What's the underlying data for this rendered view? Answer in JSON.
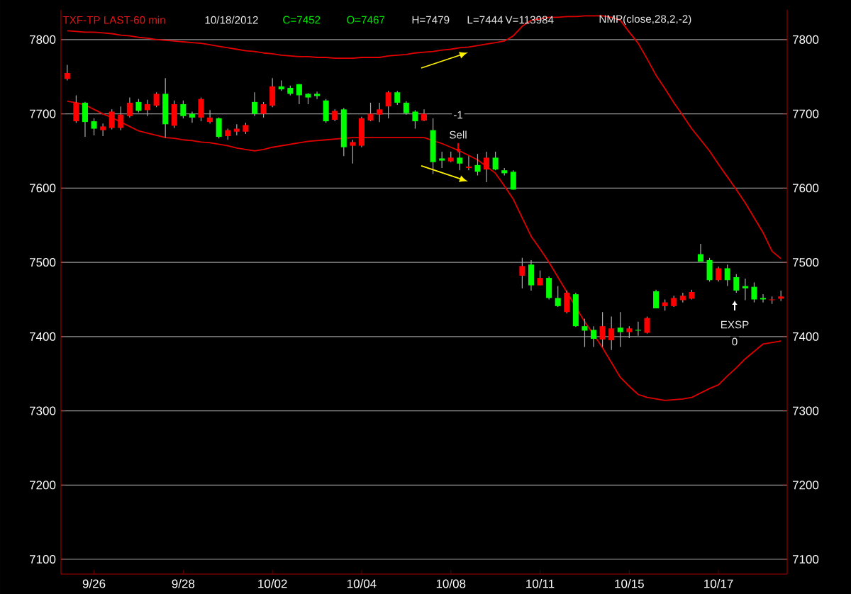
{
  "chart_data": {
    "type": "candlestick",
    "title": "TXF-TP LAST-60 min",
    "annotations": [
      "10/18/2012",
      "C=7452",
      "O=7467",
      "H=7479",
      "L=7444",
      "V=113984",
      "NMP(close,28,2,-2)",
      "-1",
      "Sell",
      "EXSP",
      "0"
    ],
    "categories": [
      null,
      null,
      null,
      "9/26",
      null,
      null,
      null,
      null,
      null,
      null,
      null,
      null,
      null,
      "9/28",
      null,
      null,
      null,
      null,
      null,
      null,
      null,
      null,
      null,
      "10/02",
      null,
      null,
      null,
      null,
      null,
      null,
      null,
      null,
      null,
      "10/04",
      null,
      null,
      null,
      null,
      null,
      null,
      null,
      null,
      null,
      "10/08",
      null,
      null,
      null,
      null,
      null,
      null,
      null,
      null,
      null,
      "10/11",
      null,
      null,
      null,
      null,
      null,
      null,
      null,
      null,
      null,
      "10/15",
      null,
      null,
      null,
      null,
      null,
      null,
      null,
      null,
      null,
      "10/17",
      null,
      null,
      null,
      null,
      null,
      null,
      null
    ],
    "ohlc": [
      [
        7747,
        7766,
        7745,
        7755
      ],
      [
        7690,
        7725,
        7688,
        7715
      ],
      [
        7715,
        7716,
        7669,
        7689
      ],
      [
        7690,
        7694,
        7671,
        7680
      ],
      [
        7678,
        7687,
        7670,
        7683
      ],
      [
        7681,
        7706,
        7679,
        7703
      ],
      [
        7681,
        7710,
        7678,
        7699
      ],
      [
        7697,
        7722,
        7695,
        7715
      ],
      [
        7716,
        7720,
        7702,
        7704
      ],
      [
        7705,
        7719,
        7697,
        7713
      ],
      [
        7711,
        7729,
        7709,
        7727
      ],
      [
        7727,
        7748,
        7668,
        7686
      ],
      [
        7684,
        7718,
        7681,
        7713
      ],
      [
        7713,
        7718,
        7694,
        7697
      ],
      [
        7700,
        7703,
        7688,
        7695
      ],
      [
        7695,
        7722,
        7690,
        7720
      ],
      [
        7689,
        7705,
        7687,
        7695
      ],
      [
        7694,
        7695,
        7667,
        7669
      ],
      [
        7670,
        7680,
        7665,
        7678
      ],
      [
        7676,
        7686,
        7671,
        7680
      ],
      [
        7676,
        7688,
        7673,
        7685
      ],
      [
        7716,
        7729,
        7697,
        7700
      ],
      [
        7700,
        7716,
        7695,
        7713
      ],
      [
        7711,
        7748,
        7709,
        7737
      ],
      [
        7737,
        7745,
        7731,
        7733
      ],
      [
        7735,
        7738,
        7725,
        7727
      ],
      [
        7740,
        7740,
        7713,
        7725
      ],
      [
        7727,
        7728,
        7713,
        7722
      ],
      [
        7727,
        7730,
        7720,
        7724
      ],
      [
        7718,
        7720,
        7688,
        7690
      ],
      [
        7692,
        7706,
        7690,
        7704
      ],
      [
        7706,
        7708,
        7643,
        7655
      ],
      [
        7657,
        7665,
        7633,
        7662
      ],
      [
        7657,
        7696,
        7655,
        7694
      ],
      [
        7691,
        7715,
        7690,
        7700
      ],
      [
        7699,
        7715,
        7689,
        7706
      ],
      [
        7710,
        7731,
        7694,
        7729
      ],
      [
        7729,
        7731,
        7712,
        7715
      ],
      [
        7715,
        7717,
        7699,
        7701
      ],
      [
        7703,
        7705,
        7680,
        7690
      ],
      [
        7691,
        7706,
        7690,
        7700
      ],
      [
        7678,
        7694,
        7619,
        7635
      ],
      [
        7640,
        7649,
        7627,
        7637
      ],
      [
        7636,
        7649,
        7635,
        7641
      ],
      [
        7641,
        7649,
        7624,
        7633
      ],
      [
        7627,
        7643,
        7624,
        7629
      ],
      [
        7631,
        7646,
        7617,
        7622
      ],
      [
        7625,
        7649,
        7608,
        7641
      ],
      [
        7641,
        7649,
        7624,
        7625
      ],
      [
        7624,
        7627,
        7617,
        7620
      ],
      [
        7622,
        7624,
        7598,
        7598
      ],
      [
        7482,
        7506,
        7465,
        7495
      ],
      [
        7497,
        7503,
        7462,
        7469
      ],
      [
        7469,
        7489,
        7469,
        7479
      ],
      [
        7479,
        7481,
        7450,
        7452
      ],
      [
        7452,
        7468,
        7440,
        7441
      ],
      [
        7433,
        7462,
        7431,
        7459
      ],
      [
        7457,
        7459,
        7413,
        7414
      ],
      [
        7414,
        7424,
        7386,
        7408
      ],
      [
        7409,
        7414,
        7386,
        7397
      ],
      [
        7396,
        7433,
        7386,
        7414
      ],
      [
        7395,
        7427,
        7382,
        7411
      ],
      [
        7412,
        7433,
        7386,
        7406
      ],
      [
        7406,
        7414,
        7398,
        7411
      ],
      [
        7409,
        7420,
        7401,
        7408
      ],
      [
        7405,
        7427,
        7404,
        7425
      ],
      [
        7461,
        7463,
        7438,
        7438
      ],
      [
        7441,
        7450,
        7435,
        7446
      ],
      [
        7441,
        7455,
        7440,
        7452
      ],
      [
        7449,
        7459,
        7446,
        7455
      ],
      [
        7451,
        7463,
        7450,
        7460
      ],
      [
        7511,
        7525,
        7501,
        7501
      ],
      [
        7503,
        7506,
        7474,
        7476
      ],
      [
        7476,
        7494,
        7474,
        7492
      ],
      [
        7492,
        7497,
        7468,
        7476
      ],
      [
        7480,
        7484,
        7459,
        7462
      ],
      [
        7468,
        7478,
        7449,
        7465
      ],
      [
        7467,
        7473,
        7446,
        7450
      ],
      [
        7452,
        7457,
        7446,
        7450
      ],
      [
        7449,
        7454,
        7444,
        7450
      ],
      [
        7451,
        7462,
        7448,
        7454
      ]
    ],
    "colors": [
      "#ff0000",
      "#ff0000",
      "#00ff00",
      "#00ff00",
      "#ff0000",
      "#ff0000",
      "#ff0000",
      "#ff0000",
      "#00ff00",
      "#ff0000",
      "#ff0000",
      "#00ff00",
      "#ff0000",
      "#00ff00",
      "#00ff00",
      "#ff0000",
      "#ff0000",
      "#00ff00",
      "#ff0000",
      "#ff0000",
      "#ff0000",
      "#00ff00",
      "#ff0000",
      "#ff0000",
      "#00ff00",
      "#00ff00",
      "#00ff00",
      "#00ff00",
      "#00ff00",
      "#00ff00",
      "#ff0000",
      "#00ff00",
      "#ff0000",
      "#ff0000",
      "#ff0000",
      "#ff0000",
      "#ff0000",
      "#00ff00",
      "#00ff00",
      "#00ff00",
      "#ff0000",
      "#00ff00",
      "#00ff00",
      "#ff0000",
      "#00ff00",
      "#ff0000",
      "#00ff00",
      "#ff0000",
      "#00ff00",
      "#00ff00",
      "#00ff00",
      "#ff0000",
      "#00ff00",
      "#ff0000",
      "#00ff00",
      "#00ff00",
      "#ff0000",
      "#00ff00",
      "#00ff00",
      "#00ff00",
      "#ff0000",
      "#ff0000",
      "#00ff00",
      "#ff0000",
      "#00ff00",
      "#ff0000",
      "#00ff00",
      "#ff0000",
      "#ff0000",
      "#ff0000",
      "#ff0000",
      "#00ff00",
      "#00ff00",
      "#ff0000",
      "#00ff00",
      "#00ff00",
      "#00ff00",
      "#00ff00",
      "#00ff00",
      "#ff0000",
      "#ff0000"
    ],
    "series": [
      {
        "type": "line",
        "color": "#e00000",
        "values": [
          7812,
          7811,
          7810,
          7810,
          7809,
          7808,
          7806,
          7805,
          7803,
          7802,
          7800,
          7799,
          7798,
          7797,
          7796,
          7795,
          7793,
          7791,
          7789,
          7787,
          7785,
          7784,
          7782,
          7781,
          7779,
          7778,
          7777,
          7777,
          7776,
          7776,
          7775,
          7775,
          7775,
          7776,
          7776,
          7776,
          7778,
          7779,
          7780,
          7782,
          7783,
          7784,
          7786,
          7787,
          7789,
          7790,
          7792,
          7794,
          7796,
          7798,
          7805,
          7818,
          7826,
          7828,
          7830,
          7830,
          7831,
          7831,
          7832,
          7832,
          7832,
          7830,
          7826,
          7810,
          7795,
          7774,
          7752,
          7734,
          7715,
          7698,
          7680,
          7665,
          7650,
          7632,
          7615,
          7598,
          7580,
          7560,
          7540,
          7515,
          7505
        ]
      },
      {
        "type": "line",
        "color": "#e00000",
        "values": [
          7717,
          7715,
          7712,
          7706,
          7700,
          7695,
          7689,
          7683,
          7677,
          7674,
          7671,
          7668,
          7667,
          7665,
          7664,
          7662,
          7661,
          7659,
          7657,
          7654,
          7652,
          7650,
          7652,
          7655,
          7657,
          7659,
          7661,
          7663,
          7664,
          7665,
          7666,
          7667,
          7668,
          7668,
          7668,
          7668,
          7668,
          7668,
          7668,
          7668,
          7668,
          7664,
          7660,
          7655,
          7650,
          7644,
          7638,
          7629,
          7620,
          7603,
          7585,
          7560,
          7535,
          7518,
          7500,
          7480,
          7460,
          7440,
          7420,
          7403,
          7385,
          7365,
          7345,
          7333,
          7322,
          7318,
          7316,
          7314,
          7315,
          7316,
          7318,
          7324,
          7330,
          7335,
          7347,
          7358,
          7370,
          7380,
          7390,
          7392,
          7394
        ]
      }
    ],
    "ylim": [
      7080,
      7840
    ],
    "yticks": [
      7100,
      7200,
      7300,
      7400,
      7500,
      7600,
      7700,
      7800
    ],
    "y2lim": [
      7080,
      7840
    ],
    "y2ticks": [
      7100,
      7200,
      7300,
      7400,
      7500,
      7600,
      7700,
      7800
    ],
    "grid": "y"
  }
}
